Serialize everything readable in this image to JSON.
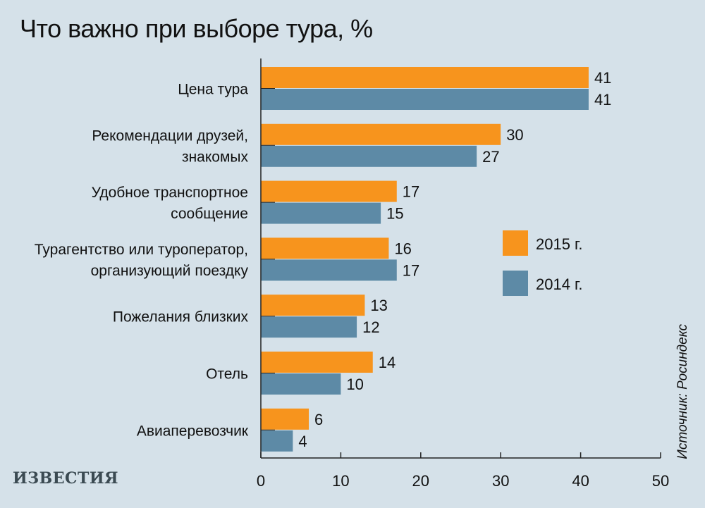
{
  "chart_data": {
    "type": "bar",
    "orientation": "horizontal",
    "title": "Что важно при выборе тура, %",
    "categories": [
      [
        "Цена тура"
      ],
      [
        "Рекомендации друзей,",
        "знакомых"
      ],
      [
        "Удобное транспортное",
        "сообщение"
      ],
      [
        "Турагентство или туроператор,",
        "организующий поездку"
      ],
      [
        "Пожелания близких"
      ],
      [
        "Отель"
      ],
      [
        "Авиаперевозчик"
      ]
    ],
    "series": [
      {
        "name": "2015 г.",
        "color": "#f7941d",
        "values": [
          41,
          30,
          17,
          16,
          13,
          14,
          6
        ]
      },
      {
        "name": "2014 г.",
        "color": "#5d8aa6",
        "values": [
          41,
          27,
          15,
          17,
          12,
          10,
          4
        ]
      }
    ],
    "xlim": [
      0,
      50
    ],
    "xticks": [
      0,
      10,
      20,
      30,
      40,
      50
    ],
    "legend_position": "right",
    "grid": false
  },
  "title": "Что важно при выборе тура, %",
  "source": "Источник: Росиндекс",
  "logo": "ИЗВЕСТИЯ"
}
